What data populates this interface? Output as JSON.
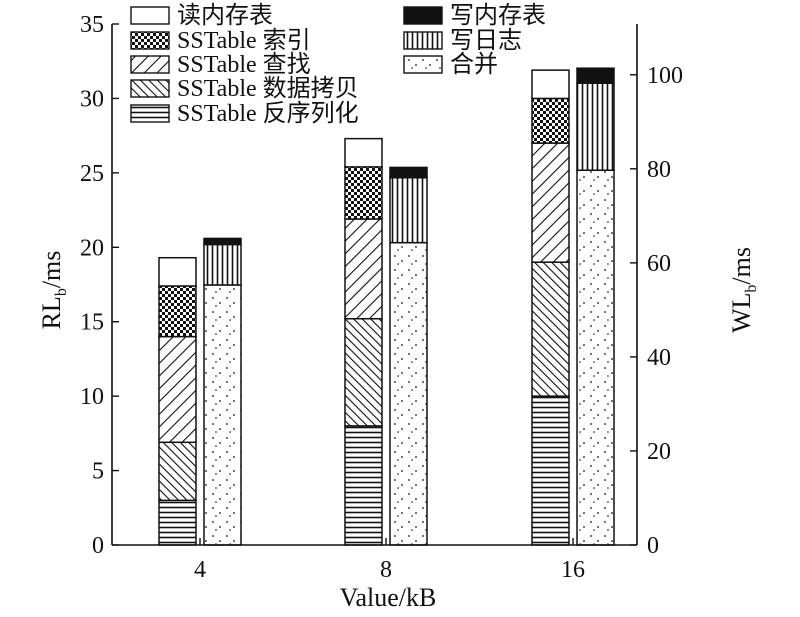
{
  "chart_data": {
    "type": "bar",
    "stacked": true,
    "categories": [
      "4",
      "8",
      "16"
    ],
    "xlabel": "Value/kB",
    "y_left": {
      "label_main": "RL",
      "label_sub": "b",
      "label_unit": "/ms",
      "range": [
        0,
        35
      ],
      "ticks": [
        0,
        5,
        10,
        15,
        20,
        25,
        30,
        35
      ]
    },
    "y_right": {
      "label_main": "WL",
      "label_sub": "b",
      "label_unit": "/ms",
      "range": [
        0,
        110.8
      ],
      "ticks": [
        0,
        20,
        40,
        60,
        80,
        100
      ]
    },
    "read_bars": {
      "axis": "left",
      "series": [
        {
          "name": "SSTable 反序列化",
          "pattern": "hlines",
          "values": [
            3.0,
            8.0,
            10.0
          ]
        },
        {
          "name": "SSTable 数据拷贝",
          "pattern": "dense-diag",
          "values": [
            3.9,
            7.2,
            9.0
          ]
        },
        {
          "name": "SSTable 查找",
          "pattern": "diag",
          "values": [
            7.1,
            6.7,
            8.0
          ]
        },
        {
          "name": "SSTable 索引",
          "pattern": "checker",
          "values": [
            3.4,
            3.5,
            3.0
          ]
        },
        {
          "name": "读内存表",
          "pattern": "empty",
          "values": [
            1.9,
            1.9,
            1.9
          ]
        }
      ]
    },
    "write_bars": {
      "axis": "right",
      "series": [
        {
          "name": "合并",
          "pattern": "dots",
          "values": [
            55.3,
            64.3,
            79.7
          ]
        },
        {
          "name": "写日志",
          "pattern": "vlines",
          "values": [
            8.6,
            13.8,
            18.5
          ]
        },
        {
          "name": "写内存表",
          "pattern": "solid",
          "values": [
            1.3,
            2.2,
            3.2
          ]
        }
      ]
    },
    "legend": {
      "placement": "top",
      "left_column": [
        "读内存表",
        "SSTable 索引",
        "SSTable 查找",
        "SSTable 数据拷贝",
        "SSTable 反序列化"
      ],
      "right_column": [
        "写内存表",
        "写日志",
        "合并"
      ]
    },
    "grid": false
  },
  "colors": {
    "ink": "#111111",
    "background": "#ffffff"
  }
}
